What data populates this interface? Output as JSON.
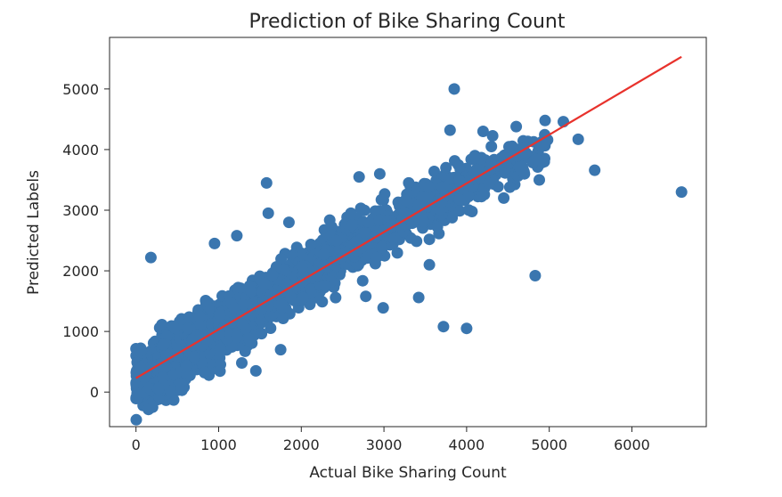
{
  "chart_data": {
    "type": "scatter",
    "title": "Prediction of Bike Sharing Count",
    "xlabel": "Actual Bike Sharing Count",
    "ylabel": "Predicted Labels",
    "xlim": [
      -320,
      6900
    ],
    "ylim": [
      -570,
      5850
    ],
    "xticks": [
      0,
      1000,
      2000,
      3000,
      4000,
      5000,
      6000
    ],
    "yticks": [
      0,
      1000,
      2000,
      3000,
      4000,
      5000
    ],
    "xtick_labels": [
      "0",
      "1000",
      "2000",
      "3000",
      "4000",
      "5000",
      "6000"
    ],
    "ytick_labels": [
      "0",
      "1000",
      "2000",
      "3000",
      "4000",
      "5000"
    ],
    "grid": false,
    "colors": {
      "points": "#3a76af",
      "fit_line": "#e8322c"
    },
    "fit_line": {
      "x": [
        0,
        6600
      ],
      "y": [
        230,
        5530
      ]
    },
    "series": [
      {
        "points": [
          [
            3850,
            5000
          ],
          [
            6600,
            3300
          ],
          [
            5550,
            3660
          ],
          [
            5350,
            4170
          ],
          [
            4830,
            1920
          ],
          [
            4000,
            1050
          ],
          [
            3720,
            1080
          ],
          [
            180,
            2220
          ],
          [
            1580,
            3450
          ],
          [
            1450,
            350
          ],
          [
            200,
            -250
          ],
          [
            4950,
            4480
          ],
          [
            5170,
            4460
          ],
          [
            4880,
            3500
          ],
          [
            4980,
            4160
          ],
          [
            3800,
            4320
          ],
          [
            3550,
            2520
          ],
          [
            3420,
            1560
          ],
          [
            2990,
            1390
          ],
          [
            2780,
            1580
          ],
          [
            3750,
            3700
          ],
          [
            2950,
            3600
          ],
          [
            2700,
            3550
          ],
          [
            1600,
            2950
          ],
          [
            950,
            2450
          ],
          [
            1220,
            2580
          ],
          [
            1850,
            2800
          ],
          [
            1750,
            700
          ],
          [
            1280,
            480
          ],
          [
            830,
            320
          ],
          [
            4600,
            4380
          ],
          [
            4200,
            4300
          ],
          [
            4100,
            3900
          ],
          [
            3300,
            3450
          ],
          [
            3550,
            2100
          ],
          [
            2600,
            2950
          ],
          [
            4450,
            3200
          ],
          [
            4300,
            3750
          ],
          [
            4700,
            3600
          ],
          [
            4300,
            4050
          ]
        ],
        "bands": [
          {
            "x": [
              0,
              250
            ],
            "center": [
              200,
              300
            ],
            "spread": 420,
            "count": 330
          },
          {
            "x": [
              250,
              600
            ],
            "center": [
              300,
              700
            ],
            "spread": 520,
            "count": 480
          },
          {
            "x": [
              600,
              1000
            ],
            "center": [
              700,
              1050
            ],
            "spread": 520,
            "count": 420
          },
          {
            "x": [
              1000,
              1500
            ],
            "center": [
              1050,
              1450
            ],
            "spread": 480,
            "count": 380
          },
          {
            "x": [
              1500,
              2000
            ],
            "center": [
              1450,
              1900
            ],
            "spread": 460,
            "count": 340
          },
          {
            "x": [
              2000,
              2600
            ],
            "center": [
              1900,
              2400
            ],
            "spread": 460,
            "count": 360
          },
          {
            "x": [
              2600,
              3200
            ],
            "center": [
              2400,
              2850
            ],
            "spread": 440,
            "count": 260
          },
          {
            "x": [
              3200,
              3900
            ],
            "center": [
              2850,
              3350
            ],
            "spread": 420,
            "count": 210
          },
          {
            "x": [
              3900,
              4600
            ],
            "center": [
              3350,
              3800
            ],
            "spread": 380,
            "count": 140
          },
          {
            "x": [
              4600,
              4950
            ],
            "center": [
              3800,
              4000
            ],
            "spread": 320,
            "count": 40
          }
        ]
      }
    ]
  }
}
